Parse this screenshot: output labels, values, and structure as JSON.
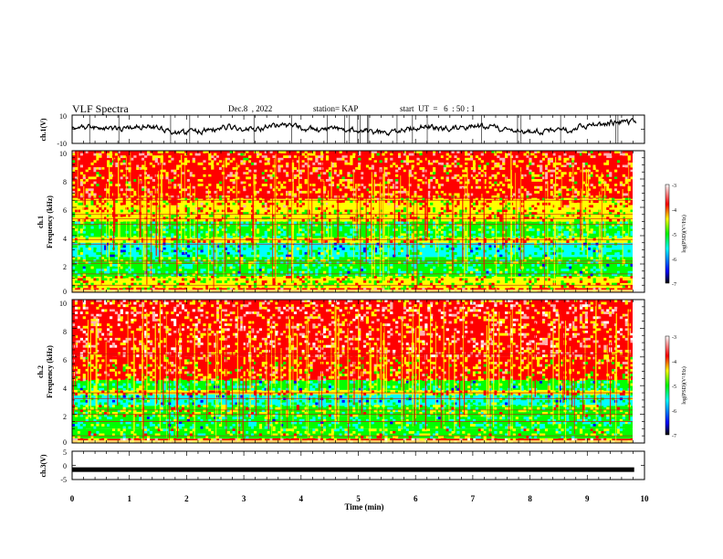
{
  "header": {
    "title": "VLF Spectra",
    "date": "Dec.8  , 2022",
    "station": "station= KAP",
    "start_time": "start  UT  =   6  : 50 : 1"
  },
  "colors": {
    "frame": "#000000",
    "background": "#ffffff",
    "spectrogram_colormap": [
      "#000000",
      "#0000ff",
      "#00ffff",
      "#00ff00",
      "#ffff00",
      "#ff0000",
      "#ffffff"
    ]
  },
  "chart_data": [
    {
      "type": "line",
      "ylabel": "ch.1(V)",
      "ylim": [
        -10,
        10
      ],
      "ytick_labels": [
        "10",
        "-10"
      ],
      "xlim": [
        0,
        10
      ],
      "description_values": "noisy voltage trace oscillating between about -5 and 8 V, larger excursions near 2.7-3 min and 9-10 min"
    },
    {
      "type": "heatmap",
      "ylabel_channel": "ch.1",
      "ylabel": "Frequency  (kHz)",
      "ylim": [
        0,
        10
      ],
      "ytick_labels": [
        "0",
        "2",
        "4",
        "6",
        "8",
        "10"
      ],
      "xlim": [
        0,
        9.8
      ],
      "colorbar": {
        "label": "log(PSD)(V²/Hz)",
        "range": [
          -7,
          -3
        ],
        "tick_labels": [
          "-3",
          "-4",
          "-5",
          "-6",
          "-7"
        ]
      },
      "bands": [
        {
          "from_khz": 0.0,
          "to_khz": 0.3,
          "level": -4.2
        },
        {
          "from_khz": 0.3,
          "to_khz": 1.1,
          "level": -4.6
        },
        {
          "from_khz": 1.1,
          "to_khz": 2.0,
          "level": -5.2
        },
        {
          "from_khz": 2.0,
          "to_khz": 2.5,
          "level": -5.0
        },
        {
          "from_khz": 2.5,
          "to_khz": 3.5,
          "level": -5.3
        },
        {
          "from_khz": 3.5,
          "to_khz": 3.9,
          "level": -4.5
        },
        {
          "from_khz": 3.9,
          "to_khz": 5.0,
          "level": -5.1
        },
        {
          "from_khz": 5.0,
          "to_khz": 5.8,
          "level": -4.5
        },
        {
          "from_khz": 5.8,
          "to_khz": 6.6,
          "level": -4.3
        },
        {
          "from_khz": 6.6,
          "to_khz": 10.0,
          "level": -4.1
        }
      ],
      "lines_khz": [
        0.5,
        1.3,
        2.05,
        2.2,
        3.4,
        3.7,
        4.8,
        5.2,
        5.5,
        6.5,
        6.7
      ]
    },
    {
      "type": "heatmap",
      "ylabel_channel": "ch.2",
      "ylabel": "Frequency  (kHz)",
      "ylim": [
        0,
        10
      ],
      "ytick_labels": [
        "0",
        "2",
        "4",
        "6",
        "8",
        "10"
      ],
      "xlim": [
        0,
        9.8
      ],
      "colorbar": {
        "label": "log(PSD)(V²/Hz)",
        "range": [
          -7,
          -3
        ],
        "tick_labels": [
          "-3",
          "-4",
          "-5",
          "-6",
          "-7"
        ]
      },
      "bands": [
        {
          "from_khz": 0.0,
          "to_khz": 0.3,
          "level": -4.0
        },
        {
          "from_khz": 0.3,
          "to_khz": 1.0,
          "level": -4.8
        },
        {
          "from_khz": 1.0,
          "to_khz": 1.9,
          "level": -5.2
        },
        {
          "from_khz": 1.9,
          "to_khz": 2.6,
          "level": -4.8
        },
        {
          "from_khz": 2.6,
          "to_khz": 3.4,
          "level": -5.3
        },
        {
          "from_khz": 3.4,
          "to_khz": 3.7,
          "level": -4.4
        },
        {
          "from_khz": 3.7,
          "to_khz": 4.4,
          "level": -5.2
        },
        {
          "from_khz": 4.4,
          "to_khz": 6.0,
          "level": -4.2
        },
        {
          "from_khz": 6.0,
          "to_khz": 10.0,
          "level": -3.9
        }
      ],
      "lines_khz": [
        0.5,
        1.5,
        2.0,
        2.3,
        3.1,
        3.5,
        6.2
      ]
    },
    {
      "type": "line",
      "ylabel": "ch.3(V)",
      "xlabel": "Time  (min)",
      "ylim": [
        -5,
        5
      ],
      "ytick_labels": [
        "5",
        "0",
        "-5"
      ],
      "xlim": [
        0,
        10
      ],
      "x_tick_labels": [
        "0",
        "1",
        "2",
        "3",
        "4",
        "5",
        "6",
        "7",
        "8",
        "9",
        "10"
      ],
      "constant_value": -1.5
    }
  ]
}
